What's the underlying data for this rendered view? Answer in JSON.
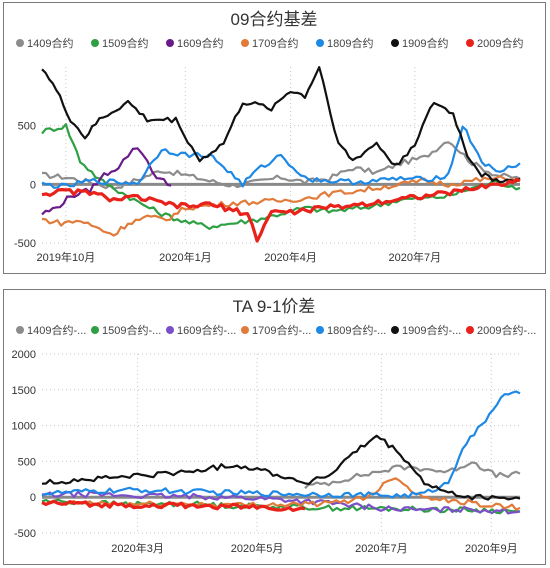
{
  "chart_data": [
    {
      "type": "line",
      "title": "09合约基差",
      "ylim": [
        -500,
        1000
      ],
      "yticks": [
        -500,
        0,
        500
      ],
      "x_tick_labels": [
        "2019年10月",
        "2020年1月",
        "2020年4月",
        "2020年7月"
      ],
      "x_range": [
        "2019-09-01",
        "2020-10-01"
      ],
      "reference_line": 0,
      "series": [
        {
          "name": "1409合约",
          "color": "#8c8c8c",
          "values": [
            [
              0,
              80
            ],
            [
              0.05,
              60
            ],
            [
              0.1,
              20
            ],
            [
              0.15,
              -30
            ],
            [
              0.2,
              40
            ],
            [
              0.25,
              120
            ],
            [
              0.3,
              80
            ],
            [
              0.35,
              30
            ],
            [
              0.4,
              -10
            ],
            [
              0.45,
              20
            ],
            [
              0.5,
              60
            ],
            [
              0.55,
              20
            ],
            [
              0.6,
              50
            ],
            [
              0.65,
              140
            ],
            [
              0.7,
              100
            ],
            [
              0.75,
              180
            ],
            [
              0.8,
              230
            ],
            [
              0.85,
              380
            ],
            [
              0.9,
              180
            ],
            [
              0.95,
              80
            ],
            [
              1,
              50
            ]
          ]
        },
        {
          "name": "1509合约",
          "color": "#2ea043",
          "values": [
            [
              0,
              450
            ],
            [
              0.05,
              500
            ],
            [
              0.08,
              200
            ],
            [
              0.12,
              40
            ],
            [
              0.2,
              -150
            ],
            [
              0.25,
              -250
            ],
            [
              0.3,
              -320
            ],
            [
              0.35,
              -360
            ],
            [
              0.4,
              -330
            ],
            [
              0.45,
              -300
            ],
            [
              0.5,
              -250
            ],
            [
              0.55,
              -200
            ],
            [
              0.6,
              -230
            ],
            [
              0.65,
              -210
            ],
            [
              0.7,
              -180
            ],
            [
              0.75,
              -130
            ],
            [
              0.8,
              -120
            ],
            [
              0.85,
              -100
            ],
            [
              0.9,
              -30
            ],
            [
              0.95,
              20
            ],
            [
              1,
              -30
            ]
          ]
        },
        {
          "name": "1609合约",
          "color": "#6a1b8a",
          "values": [
            [
              0,
              -250
            ],
            [
              0.03,
              -200
            ],
            [
              0.06,
              -100
            ],
            [
              0.1,
              -50
            ],
            [
              0.13,
              80
            ],
            [
              0.16,
              150
            ],
            [
              0.18,
              250
            ],
            [
              0.2,
              320
            ],
            [
              0.22,
              200
            ],
            [
              0.24,
              60
            ],
            [
              0.27,
              -10
            ]
          ]
        },
        {
          "name": "1709合约",
          "color": "#e07b39",
          "values": [
            [
              0,
              -300
            ],
            [
              0.04,
              -330
            ],
            [
              0.08,
              -310
            ],
            [
              0.12,
              -380
            ],
            [
              0.15,
              -430
            ],
            [
              0.18,
              -330
            ],
            [
              0.22,
              -280
            ],
            [
              0.26,
              -300
            ],
            [
              0.3,
              -200
            ],
            [
              0.35,
              -180
            ],
            [
              0.4,
              -160
            ],
            [
              0.45,
              -150
            ],
            [
              0.5,
              -140
            ],
            [
              0.55,
              -120
            ],
            [
              0.6,
              -80
            ],
            [
              0.65,
              -60
            ],
            [
              0.7,
              -30
            ],
            [
              0.75,
              0
            ],
            [
              0.8,
              30
            ],
            [
              0.85,
              0
            ],
            [
              0.9,
              30
            ],
            [
              0.95,
              50
            ],
            [
              1,
              40
            ]
          ]
        },
        {
          "name": "1809合约",
          "color": "#1e88e5",
          "values": [
            [
              0,
              0
            ],
            [
              0.05,
              -20
            ],
            [
              0.1,
              30
            ],
            [
              0.15,
              20
            ],
            [
              0.2,
              10
            ],
            [
              0.25,
              300
            ],
            [
              0.3,
              250
            ],
            [
              0.35,
              250
            ],
            [
              0.38,
              150
            ],
            [
              0.42,
              0
            ],
            [
              0.45,
              120
            ],
            [
              0.5,
              250
            ],
            [
              0.55,
              50
            ],
            [
              0.6,
              30
            ],
            [
              0.65,
              20
            ],
            [
              0.7,
              30
            ],
            [
              0.75,
              50
            ],
            [
              0.8,
              40
            ],
            [
              0.85,
              80
            ],
            [
              0.88,
              500
            ],
            [
              0.92,
              200
            ],
            [
              0.95,
              100
            ],
            [
              1,
              180
            ]
          ]
        },
        {
          "name": "1909合约",
          "color": "#111111",
          "values": [
            [
              0,
              1000
            ],
            [
              0.03,
              800
            ],
            [
              0.06,
              550
            ],
            [
              0.09,
              400
            ],
            [
              0.12,
              550
            ],
            [
              0.18,
              700
            ],
            [
              0.22,
              550
            ],
            [
              0.28,
              550
            ],
            [
              0.33,
              200
            ],
            [
              0.38,
              350
            ],
            [
              0.42,
              700
            ],
            [
              0.48,
              650
            ],
            [
              0.52,
              800
            ],
            [
              0.55,
              750
            ],
            [
              0.58,
              1000
            ],
            [
              0.62,
              350
            ],
            [
              0.65,
              200
            ],
            [
              0.7,
              350
            ],
            [
              0.74,
              150
            ],
            [
              0.78,
              350
            ],
            [
              0.82,
              700
            ],
            [
              0.86,
              600
            ],
            [
              0.89,
              250
            ],
            [
              0.92,
              80
            ],
            [
              0.95,
              40
            ],
            [
              0.98,
              30
            ],
            [
              1,
              50
            ]
          ]
        },
        {
          "name": "2009合约",
          "color": "#e8221b",
          "values": [
            [
              0,
              -80
            ],
            [
              0.05,
              -60
            ],
            [
              0.1,
              -70
            ],
            [
              0.15,
              -130
            ],
            [
              0.2,
              -110
            ],
            [
              0.25,
              -160
            ],
            [
              0.3,
              -190
            ],
            [
              0.35,
              -170
            ],
            [
              0.4,
              -220
            ],
            [
              0.43,
              -250
            ],
            [
              0.45,
              -470
            ],
            [
              0.48,
              -230
            ],
            [
              0.52,
              -240
            ],
            [
              0.57,
              -210
            ],
            [
              0.62,
              -190
            ],
            [
              0.67,
              -170
            ],
            [
              0.72,
              -140
            ],
            [
              0.77,
              -110
            ],
            [
              0.82,
              -90
            ],
            [
              0.87,
              -60
            ],
            [
              0.92,
              -20
            ],
            [
              0.97,
              10
            ],
            [
              1,
              30
            ]
          ]
        }
      ]
    },
    {
      "type": "line",
      "title": "TA 9-1价差",
      "ylim": [
        -500,
        2000
      ],
      "yticks": [
        -500,
        0,
        500,
        1000,
        1500,
        2000
      ],
      "x_tick_labels": [
        "2020年3月",
        "2020年5月",
        "2020年7月",
        "2020年9月"
      ],
      "reference_line": 0,
      "legend": [
        "1409合约-...",
        "1509合约-...",
        "1609合约-...",
        "1709合约-...",
        "1809合约-...",
        "1909合约-...",
        "2009合约-..."
      ],
      "series": [
        {
          "name": "1409合约-...",
          "color": "#8c8c8c",
          "values": [
            [
              0.55,
              150
            ],
            [
              0.6,
              200
            ],
            [
              0.65,
              280
            ],
            [
              0.7,
              350
            ],
            [
              0.75,
              420
            ],
            [
              0.8,
              400
            ],
            [
              0.85,
              350
            ],
            [
              0.9,
              500
            ],
            [
              0.95,
              300
            ],
            [
              1,
              330
            ]
          ]
        },
        {
          "name": "1509合约-...",
          "color": "#2ea043",
          "values": [
            [
              0,
              -50
            ],
            [
              0.1,
              -80
            ],
            [
              0.2,
              -100
            ],
            [
              0.3,
              -90
            ],
            [
              0.4,
              -120
            ],
            [
              0.5,
              -130
            ],
            [
              0.6,
              -150
            ],
            [
              0.7,
              -160
            ],
            [
              0.8,
              -170
            ],
            [
              0.9,
              -180
            ],
            [
              1,
              -200
            ]
          ]
        },
        {
          "name": "1609合约-...",
          "color": "#7b4fc9",
          "values": [
            [
              0,
              30
            ],
            [
              0.1,
              40
            ],
            [
              0.2,
              20
            ],
            [
              0.3,
              10
            ],
            [
              0.4,
              0
            ],
            [
              0.5,
              -30
            ],
            [
              0.6,
              -80
            ],
            [
              0.7,
              -150
            ],
            [
              0.8,
              -180
            ],
            [
              0.9,
              -170
            ],
            [
              1,
              -200
            ]
          ]
        },
        {
          "name": "1709合约-...",
          "color": "#e07b39",
          "values": [
            [
              0,
              -100
            ],
            [
              0.1,
              -80
            ],
            [
              0.2,
              -100
            ],
            [
              0.3,
              -90
            ],
            [
              0.4,
              -110
            ],
            [
              0.5,
              -100
            ],
            [
              0.6,
              -90
            ],
            [
              0.68,
              0
            ],
            [
              0.74,
              300
            ],
            [
              0.78,
              50
            ],
            [
              0.85,
              -50
            ],
            [
              0.9,
              -80
            ],
            [
              0.95,
              -120
            ],
            [
              1,
              -150
            ]
          ]
        },
        {
          "name": "1809合约-...",
          "color": "#1e88e5",
          "values": [
            [
              0,
              50
            ],
            [
              0.1,
              80
            ],
            [
              0.2,
              100
            ],
            [
              0.3,
              80
            ],
            [
              0.4,
              60
            ],
            [
              0.5,
              50
            ],
            [
              0.6,
              40
            ],
            [
              0.7,
              30
            ],
            [
              0.75,
              20
            ],
            [
              0.8,
              50
            ],
            [
              0.85,
              200
            ],
            [
              0.88,
              700
            ],
            [
              0.92,
              1000
            ],
            [
              0.96,
              1400
            ],
            [
              1,
              1450
            ]
          ]
        },
        {
          "name": "1909合约-...",
          "color": "#111111",
          "values": [
            [
              0,
              200
            ],
            [
              0.1,
              250
            ],
            [
              0.2,
              300
            ],
            [
              0.3,
              350
            ],
            [
              0.4,
              450
            ],
            [
              0.45,
              400
            ],
            [
              0.5,
              300
            ],
            [
              0.55,
              200
            ],
            [
              0.6,
              300
            ],
            [
              0.65,
              600
            ],
            [
              0.7,
              850
            ],
            [
              0.75,
              600
            ],
            [
              0.8,
              200
            ],
            [
              0.85,
              50
            ],
            [
              0.9,
              0
            ],
            [
              1,
              -20
            ]
          ]
        },
        {
          "name": "2009合约-...",
          "color": "#e8221b",
          "values": [
            [
              0,
              -80
            ],
            [
              0.1,
              -100
            ],
            [
              0.2,
              -110
            ],
            [
              0.3,
              -120
            ],
            [
              0.4,
              -130
            ],
            [
              0.5,
              -150
            ],
            [
              0.55,
              -160
            ]
          ]
        }
      ]
    }
  ]
}
